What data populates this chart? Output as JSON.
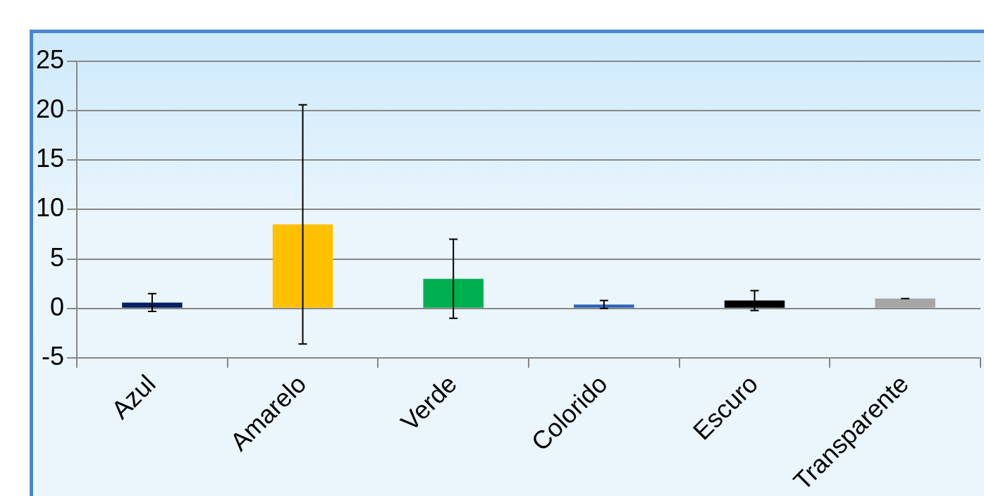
{
  "chart_data": {
    "type": "bar",
    "categories": [
      "Azul",
      "Amarelo",
      "Verde",
      "Colorido",
      "Escuro",
      "Transparente"
    ],
    "values": [
      0.6,
      8.5,
      3.0,
      0.4,
      0.8,
      1.0
    ],
    "errors": [
      0.9,
      12.1,
      4.0,
      0.4,
      1.0,
      0
    ],
    "colors": [
      "#002060",
      "#ffc000",
      "#00b050",
      "#2e64b4",
      "#000000",
      "#a6a6a6"
    ],
    "ylim": [
      -5,
      25
    ],
    "yticks": [
      -5,
      0,
      5,
      10,
      15,
      20,
      25
    ],
    "grid": "y",
    "legend": false
  }
}
